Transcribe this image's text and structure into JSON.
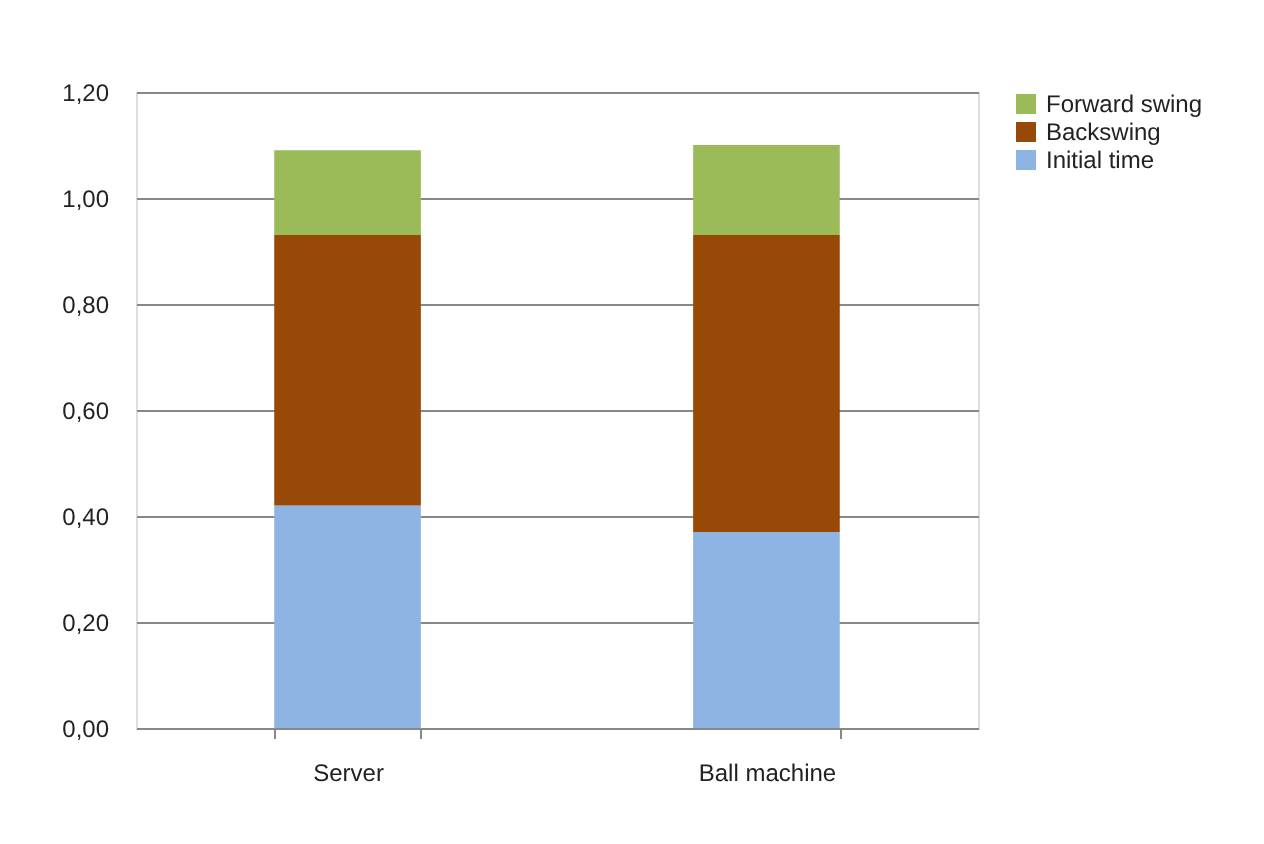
{
  "chart_data": {
    "type": "bar",
    "stacked": true,
    "categories": [
      "Server",
      "Ball machine"
    ],
    "series": [
      {
        "name": "Initial time",
        "color": "#8eb4e3",
        "values": [
          0.42,
          0.37
        ]
      },
      {
        "name": "Backswing",
        "color": "#984807",
        "values": [
          0.51,
          0.56
        ]
      },
      {
        "name": "Forward swing",
        "color": "#9bbb59",
        "values": [
          0.16,
          0.17
        ]
      }
    ],
    "ylim": [
      0,
      1.2
    ],
    "yticks": [
      {
        "value": 0,
        "label": "0,00"
      },
      {
        "value": 0.2,
        "label": "0,20"
      },
      {
        "value": 0.4,
        "label": "0,40"
      },
      {
        "value": 0.6,
        "label": "0,60"
      },
      {
        "value": 0.8,
        "label": "0,80"
      },
      {
        "value": 1.0,
        "label": "1,00"
      },
      {
        "value": 1.2,
        "label": "1,20"
      }
    ],
    "grid": "y",
    "legend": "right"
  }
}
